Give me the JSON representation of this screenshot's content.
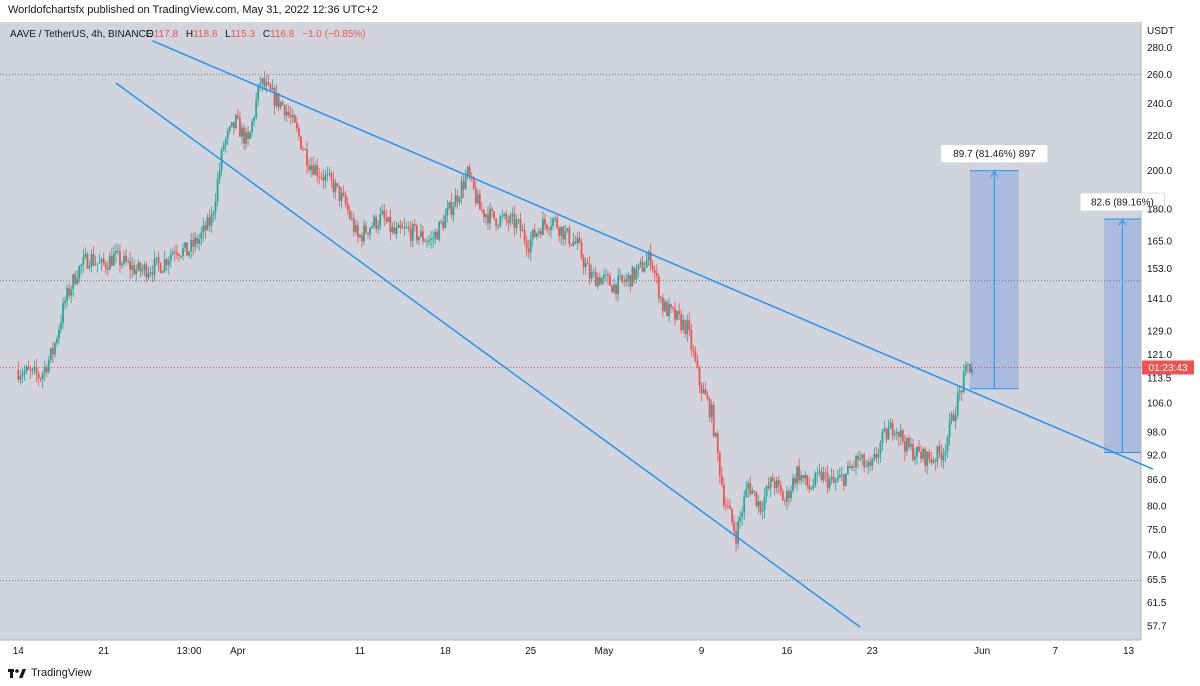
{
  "header": {
    "published": "Worldofchartsfx published on TradingView.com, May 31, 2022 12:36 UTC+2"
  },
  "legend": {
    "symbol": "AAVE / TetherUS, 4h, BINANCE",
    "o_label": "O",
    "o_value": "117.8",
    "h_label": "H",
    "h_value": "118.8",
    "l_label": "L",
    "l_value": "115.3",
    "c_label": "C",
    "c_value": "116.8",
    "change": "−1.0 (−0.85%)"
  },
  "footer": {
    "brand": "TradingView"
  },
  "colors": {
    "up": "#26a69a",
    "down": "#ef5350",
    "line": "#2196f3",
    "background": "#d1d4dc",
    "box": "rgba(33,100,230,0.22)"
  },
  "chart_data": {
    "type": "candlestick",
    "currency": "USDT",
    "y_scale": "log",
    "ylim": [
      55.5,
      300
    ],
    "y_ticks": [
      "280.0",
      "260.0",
      "240.0",
      "220.0",
      "200.0",
      "180.0",
      "165.0",
      "153.0",
      "141.0",
      "129.0",
      "121.0",
      "113.5",
      "106.0",
      "98.0",
      "92.0",
      "86.0",
      "80.0",
      "75.0",
      "70.0",
      "65.5",
      "61.5",
      "57.7"
    ],
    "x_ticks": [
      "14",
      "21",
      "13:00",
      "Apr",
      "11",
      "18",
      "25",
      "May",
      "9",
      "16",
      "23",
      "Jun",
      "7",
      "13"
    ],
    "x_tick_dates": [
      "2022-03-14",
      "2022-03-21",
      "2022-03-28",
      "2022-04-01",
      "2022-04-11",
      "2022-04-18",
      "2022-04-25",
      "2022-05-01",
      "2022-05-09",
      "2022-05-16",
      "2022-05-23",
      "2022-06-01",
      "2022-06-07",
      "2022-06-13"
    ],
    "price_path": [
      [
        "2022-03-14",
        116
      ],
      [
        "2022-03-16",
        114
      ],
      [
        "2022-03-17",
        122
      ],
      [
        "2022-03-18",
        140
      ],
      [
        "2022-03-19",
        152
      ],
      [
        "2022-03-20",
        158
      ],
      [
        "2022-03-21",
        154
      ],
      [
        "2022-03-22",
        158
      ],
      [
        "2022-03-24",
        152
      ],
      [
        "2022-03-26",
        155
      ],
      [
        "2022-03-27",
        162
      ],
      [
        "2022-03-28",
        160
      ],
      [
        "2022-03-29",
        166
      ],
      [
        "2022-03-30",
        175
      ],
      [
        "2022-03-31",
        215
      ],
      [
        "2022-04-01",
        228
      ],
      [
        "2022-04-02",
        215
      ],
      [
        "2022-04-03",
        255
      ],
      [
        "2022-04-04",
        245
      ],
      [
        "2022-04-05",
        238
      ],
      [
        "2022-04-06",
        222
      ],
      [
        "2022-04-07",
        205
      ],
      [
        "2022-04-08",
        198
      ],
      [
        "2022-04-09",
        192
      ],
      [
        "2022-04-10",
        182
      ],
      [
        "2022-04-11",
        166
      ],
      [
        "2022-04-12",
        172
      ],
      [
        "2022-04-13",
        176
      ],
      [
        "2022-04-14",
        168
      ],
      [
        "2022-04-15",
        170
      ],
      [
        "2022-04-17",
        165
      ],
      [
        "2022-04-18",
        174
      ],
      [
        "2022-04-19",
        185
      ],
      [
        "2022-04-20",
        198
      ],
      [
        "2022-04-21",
        180
      ],
      [
        "2022-04-22",
        176
      ],
      [
        "2022-04-24",
        173
      ],
      [
        "2022-04-25",
        164
      ],
      [
        "2022-04-26",
        172
      ],
      [
        "2022-04-27",
        175
      ],
      [
        "2022-04-28",
        168
      ],
      [
        "2022-04-29",
        163
      ],
      [
        "2022-04-30",
        150
      ],
      [
        "2022-05-01",
        149
      ],
      [
        "2022-05-02",
        146
      ],
      [
        "2022-05-03",
        148
      ],
      [
        "2022-05-04",
        152
      ],
      [
        "2022-05-05",
        158
      ],
      [
        "2022-05-06",
        138
      ],
      [
        "2022-05-07",
        134
      ],
      [
        "2022-05-08",
        130
      ],
      [
        "2022-05-09",
        112
      ],
      [
        "2022-05-10",
        103
      ],
      [
        "2022-05-11",
        82
      ],
      [
        "2022-05-12",
        74
      ],
      [
        "2022-05-13",
        85
      ],
      [
        "2022-05-14",
        80
      ],
      [
        "2022-05-15",
        86
      ],
      [
        "2022-05-16",
        81
      ],
      [
        "2022-05-17",
        88
      ],
      [
        "2022-05-18",
        84
      ],
      [
        "2022-05-19",
        87
      ],
      [
        "2022-05-20",
        85
      ],
      [
        "2022-05-21",
        87
      ],
      [
        "2022-05-22",
        91
      ],
      [
        "2022-05-23",
        88
      ],
      [
        "2022-05-24",
        96
      ],
      [
        "2022-05-25",
        100
      ],
      [
        "2022-05-26",
        94
      ],
      [
        "2022-05-27",
        92
      ],
      [
        "2022-05-28",
        91
      ],
      [
        "2022-05-29",
        93
      ],
      [
        "2022-05-30",
        105
      ],
      [
        "2022-05-31",
        117
      ]
    ],
    "last_price": "116.8",
    "countdown": "01:23:43",
    "horizontal_levels": [
      260.0,
      148.0,
      116.8,
      65.3
    ],
    "trendlines": [
      {
        "name": "upper",
        "points": [
          [
            "2022-03-25",
            285
          ],
          [
            "2022-06-15",
            88.5
          ]
        ]
      },
      {
        "name": "lower",
        "points": [
          [
            "2022-03-22",
            254
          ],
          [
            "2022-05-22",
            57.5
          ]
        ]
      }
    ],
    "measures": [
      {
        "label": "89.7 (81.46%) 897",
        "x_range": [
          "2022-05-31",
          "2022-06-04"
        ],
        "y_range": [
          110.2,
          199.9
        ]
      },
      {
        "label": "82.6 (89.16%)",
        "x_range": [
          "2022-06-11",
          "2022-06-14"
        ],
        "y_range": [
          92.6,
          175.2
        ]
      }
    ]
  }
}
